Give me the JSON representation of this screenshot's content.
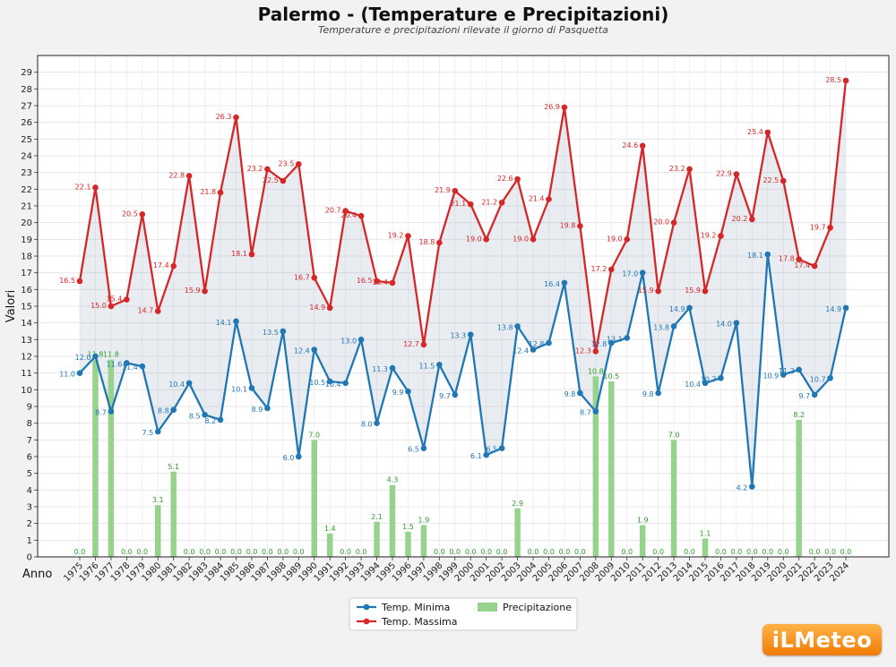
{
  "title": "Palermo -  (Temperature e Precipitazioni)",
  "subtitle": "Temperature e precipitazioni rilevate il giorno di Pasquetta",
  "logo_text": "iLMeteo",
  "chart_data": {
    "type": "line",
    "ylabel": "Valori",
    "xlabel": "Anno",
    "ylim": [
      0,
      30
    ],
    "yticks": [
      0,
      1,
      2,
      3,
      4,
      5,
      6,
      7,
      8,
      9,
      10,
      11,
      12,
      13,
      14,
      15,
      16,
      17,
      18,
      19,
      20,
      21,
      22,
      23,
      24,
      25,
      26,
      27,
      28,
      29
    ],
    "grid": true,
    "legend_position": "bottom-center",
    "categories": [
      "1975",
      "1976",
      "1977",
      "1978",
      "1979",
      "1980",
      "1981",
      "1982",
      "1983",
      "1984",
      "1985",
      "1986",
      "1987",
      "1988",
      "1989",
      "1990",
      "1991",
      "1992",
      "1993",
      "1994",
      "1995",
      "1996",
      "1997",
      "1998",
      "1999",
      "2000",
      "2001",
      "2002",
      "2003",
      "2004",
      "2005",
      "2006",
      "2007",
      "2008",
      "2009",
      "2010",
      "2011",
      "2012",
      "2013",
      "2014",
      "2015",
      "2016",
      "2017",
      "2018",
      "2019",
      "2020",
      "2021",
      "2022",
      "2023",
      "2024"
    ],
    "series": [
      {
        "name": "Temp. Minima",
        "type": "line",
        "color": "#1f77b4",
        "values": [
          11.0,
          12.0,
          8.7,
          11.6,
          11.4,
          7.5,
          8.8,
          10.4,
          8.5,
          8.2,
          14.1,
          10.1,
          8.9,
          13.5,
          6.0,
          12.4,
          10.5,
          10.4,
          13.0,
          8.0,
          11.3,
          9.9,
          6.5,
          11.5,
          9.7,
          13.3,
          6.1,
          6.5,
          13.8,
          12.4,
          12.8,
          16.4,
          9.8,
          8.7,
          12.8,
          13.1,
          17.0,
          9.8,
          13.8,
          14.9,
          10.4,
          10.7,
          14.0,
          4.2,
          18.1,
          10.9,
          11.2,
          9.7,
          10.7,
          14.9
        ],
        "labels": [
          "11.0",
          "12.0",
          "8.7",
          "11.6",
          "11.4",
          "7.5",
          "8.8",
          "10.4",
          "8.5",
          "8.2",
          "14.1",
          "10.1",
          "8.9",
          "13.5",
          "6.0",
          "12.4",
          "10.5",
          "10.4",
          "13.0",
          "8.0",
          "11.3",
          "9.9",
          "6.5",
          "11.5",
          "9.7",
          "13.3",
          "6.1",
          "6.5",
          "13.8",
          "12.4",
          "12.8",
          "16.4",
          "9.8",
          "8.7",
          "12.8",
          "13.1",
          "17.0",
          "9.8",
          "13.8",
          "14.9",
          "10.4",
          "10.7",
          "14.0",
          "4.2",
          "18.1",
          "10.9",
          "11.2",
          "9.7",
          "10.7",
          "14.9"
        ]
      },
      {
        "name": "Temp. Massima",
        "type": "line",
        "color": "#d62728",
        "values": [
          16.5,
          22.1,
          15.0,
          15.4,
          20.5,
          14.7,
          17.4,
          22.8,
          15.9,
          21.8,
          26.3,
          18.1,
          23.2,
          22.5,
          23.5,
          16.7,
          14.9,
          20.7,
          20.4,
          16.5,
          16.4,
          19.2,
          12.7,
          18.8,
          21.9,
          21.1,
          19.0,
          21.2,
          22.6,
          19.0,
          21.4,
          26.9,
          19.8,
          12.3,
          17.2,
          19.0,
          24.6,
          15.9,
          20.0,
          23.2,
          15.9,
          19.2,
          22.9,
          20.2,
          25.4,
          22.5,
          17.8,
          17.4,
          19.7,
          28.5
        ],
        "labels": [
          "16.5",
          "22.1",
          "15.0",
          "15.4",
          "20.5",
          "14.7",
          "17.4",
          "22.8",
          "15.9",
          "21.8",
          "26.3",
          "18.1",
          "23.2",
          "22.5",
          "23.5",
          "16.7",
          "14.9",
          "20.7",
          "20.4",
          "16.5",
          "16.4",
          "19.2",
          "12.7",
          "18.8",
          "21.9",
          "21.1",
          "19.0",
          "21.2",
          "22.6",
          "19.0",
          "21.4",
          "26.9",
          "19.8",
          "12.3",
          "17.2",
          "19.0",
          "24.6",
          "15.9",
          "20.0",
          "23.2",
          "15.9",
          "19.2",
          "22.9",
          "20.2",
          "25.4",
          "22.5",
          "17.8",
          "17.4",
          "19.7",
          "28.5"
        ]
      },
      {
        "name": "Precipitazione",
        "type": "bar",
        "color": "#98d38e",
        "label_color": "#2ca02c",
        "values": [
          0.0,
          11.8,
          11.8,
          0.0,
          0.0,
          3.1,
          5.1,
          0.0,
          0.0,
          0.0,
          0.0,
          0.0,
          0.0,
          0.0,
          0.0,
          7.0,
          1.4,
          0.0,
          0.0,
          2.1,
          4.3,
          1.5,
          1.9,
          0.0,
          0.0,
          0.0,
          0.0,
          0.0,
          2.9,
          0.0,
          0.0,
          0.0,
          0.0,
          10.8,
          10.5,
          0.0,
          1.9,
          0.0,
          7.0,
          0.0,
          1.1,
          0.0,
          0.0,
          0.0,
          0.0,
          0.0,
          8.2,
          0.0,
          0.0,
          0.0
        ],
        "labels": [
          "0.0",
          "11.8",
          "11.8",
          "0.0",
          "0.0",
          "3.1",
          "5.1",
          "0.0",
          "0.0",
          "0.0",
          "0.0",
          "0.0",
          "0.0",
          "0.0",
          "0.0",
          "7.0",
          "1.4",
          "0.0",
          "0.0",
          "2.1",
          "4.3",
          "1.5",
          "1.9",
          "0.0",
          "0.0",
          "0.0",
          "0.0",
          "0.0",
          "2.9",
          "0.0",
          "0.0",
          "0.0",
          "0.0",
          "10.8",
          "10.5",
          "0.0",
          "1.9",
          "0.0",
          "7.0",
          "0.0",
          "1.1",
          "0.0",
          "0.0",
          "0.0",
          "0.0",
          "0.0",
          "8.2",
          "0.0",
          "0.0",
          "0.0"
        ]
      }
    ]
  }
}
